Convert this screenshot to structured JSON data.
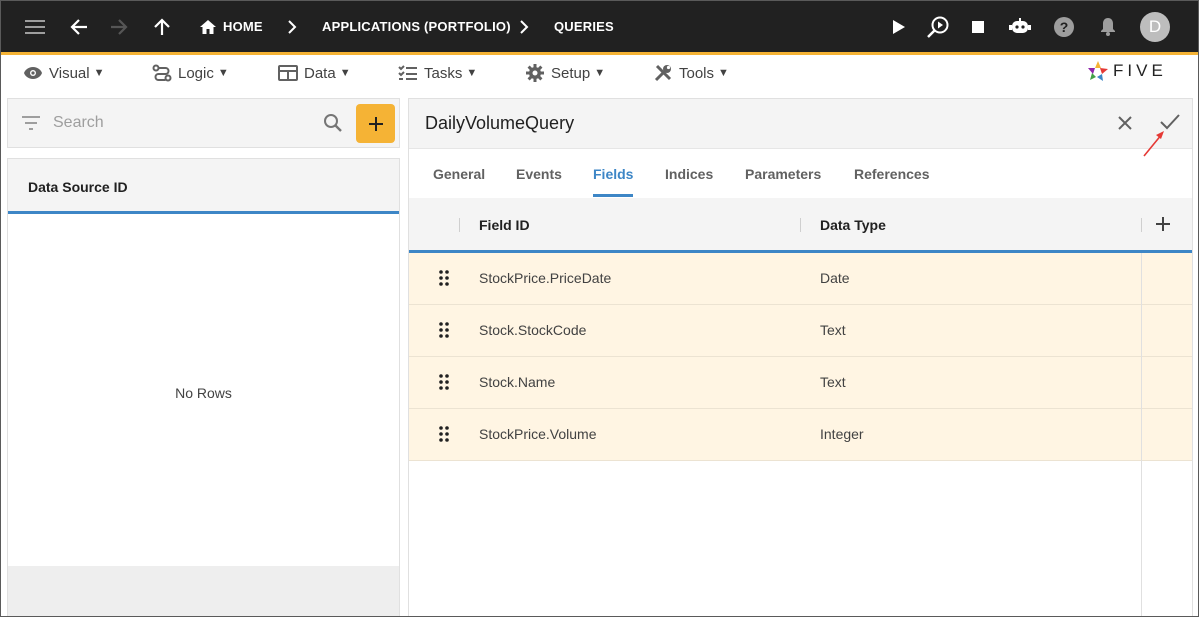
{
  "app": {
    "nav": {
      "home_label": "HOME",
      "crumb_1": "APPLICATIONS (PORTFOLIO)",
      "crumb_2": "QUERIES",
      "avatar_initial": "D"
    },
    "menu": {
      "visual": "Visual",
      "logic": "Logic",
      "data": "Data",
      "tasks": "Tasks",
      "setup": "Setup",
      "tools": "Tools",
      "caret": "▼"
    },
    "logo_text": "FIVE"
  },
  "left_panel": {
    "search_placeholder": "Search",
    "column_header": "Data Source ID",
    "empty_text": "No Rows"
  },
  "form": {
    "title": "DailyVolumeQuery",
    "tabs": [
      "General",
      "Events",
      "Fields",
      "Indices",
      "Parameters",
      "References"
    ],
    "active_tab": "Fields",
    "grid": {
      "columns": [
        "Field ID",
        "Data Type"
      ],
      "rows": [
        {
          "field_id": "StockPrice.PriceDate",
          "data_type": "Date"
        },
        {
          "field_id": "Stock.StockCode",
          "data_type": "Text"
        },
        {
          "field_id": "Stock.Name",
          "data_type": "Text"
        },
        {
          "field_id": "StockPrice.Volume",
          "data_type": "Integer"
        }
      ]
    }
  },
  "colors": {
    "topbar": "#212121",
    "accent": "#f5b335",
    "link_blue": "#3d86c6",
    "row_highlight": "#fff5e3",
    "annotation_arrow": "#e53935"
  }
}
